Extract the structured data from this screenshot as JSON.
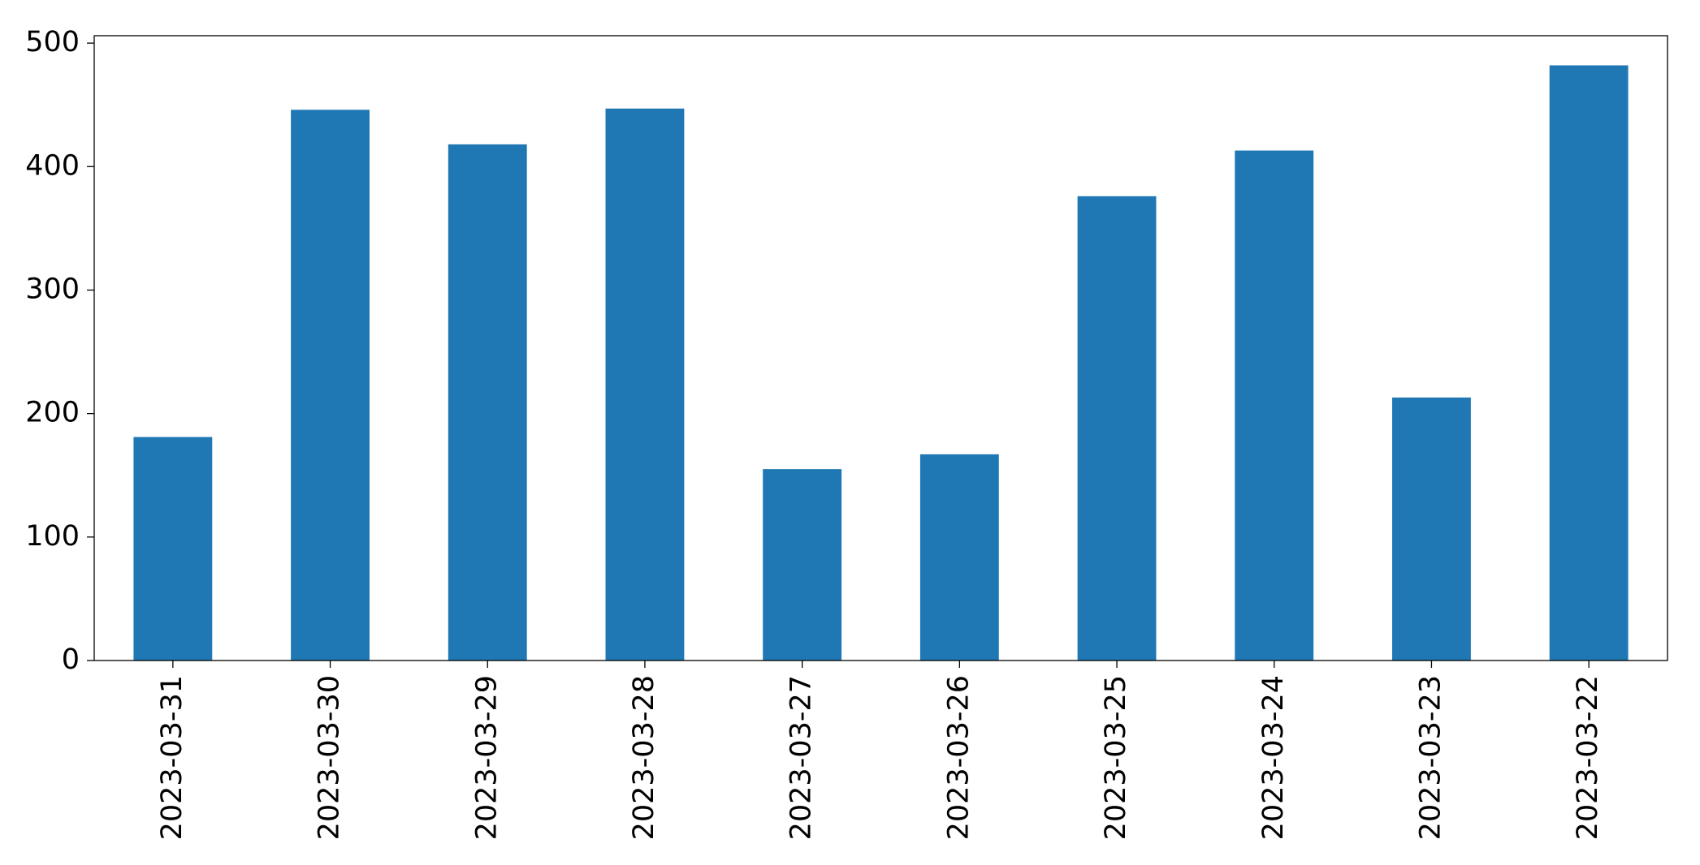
{
  "chart_data": {
    "type": "bar",
    "categories": [
      "2023-03-31",
      "2023-03-30",
      "2023-03-29",
      "2023-03-28",
      "2023-03-27",
      "2023-03-26",
      "2023-03-25",
      "2023-03-24",
      "2023-03-23",
      "2023-03-22"
    ],
    "values": [
      181,
      446,
      418,
      447,
      155,
      167,
      376,
      413,
      213,
      482
    ],
    "color": "#1f77b4",
    "ylim": [
      0,
      506
    ],
    "yticks": [
      0,
      100,
      200,
      300,
      400,
      500
    ],
    "grid": false
  }
}
